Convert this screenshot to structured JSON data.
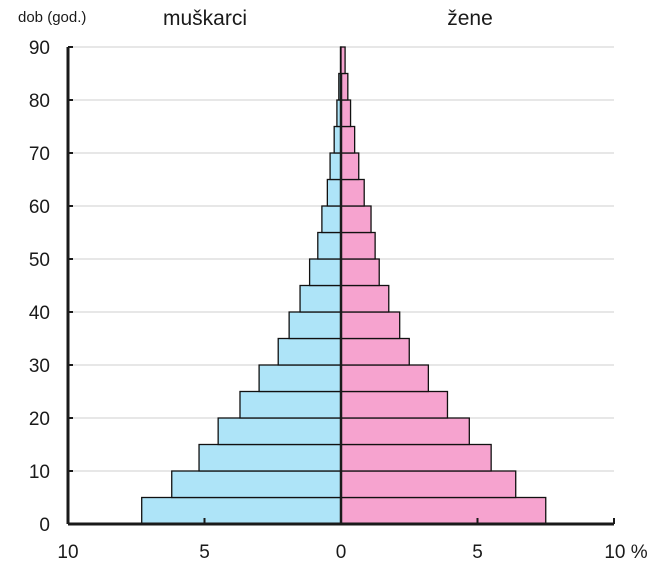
{
  "chart_data": {
    "type": "bar",
    "orientation": "horizontal-population-pyramid",
    "title": "",
    "ylabel": "dob (god.)",
    "xlabel": "%",
    "left_label": "muškarci",
    "right_label": "žene",
    "age_groups": [
      "0-4",
      "5-9",
      "10-14",
      "15-19",
      "20-24",
      "25-29",
      "30-34",
      "35-39",
      "40-44",
      "45-49",
      "50-54",
      "55-59",
      "60-64",
      "65-69",
      "70-74",
      "75-79",
      "80-84",
      "85+"
    ],
    "series": [
      {
        "name": "muškarci",
        "color": "#aee4f8",
        "values": [
          7.3,
          6.2,
          5.2,
          4.5,
          3.7,
          3.0,
          2.3,
          1.9,
          1.5,
          1.15,
          0.85,
          0.7,
          0.5,
          0.4,
          0.25,
          0.15,
          0.08,
          0.02
        ]
      },
      {
        "name": "žene",
        "color": "#f6a3cf",
        "values": [
          7.5,
          6.4,
          5.5,
          4.7,
          3.9,
          3.2,
          2.5,
          2.15,
          1.75,
          1.4,
          1.25,
          1.1,
          0.85,
          0.65,
          0.5,
          0.35,
          0.25,
          0.15
        ]
      }
    ],
    "xlim": [
      -10,
      10
    ],
    "ylim": [
      0,
      90
    ],
    "x_ticks": [
      "10",
      "5",
      "0",
      "5",
      "10 %"
    ],
    "y_ticks": [
      "0",
      "10",
      "20",
      "30",
      "40",
      "50",
      "60",
      "70",
      "80",
      "90"
    ],
    "grid": "horizontal",
    "legend": "none"
  }
}
